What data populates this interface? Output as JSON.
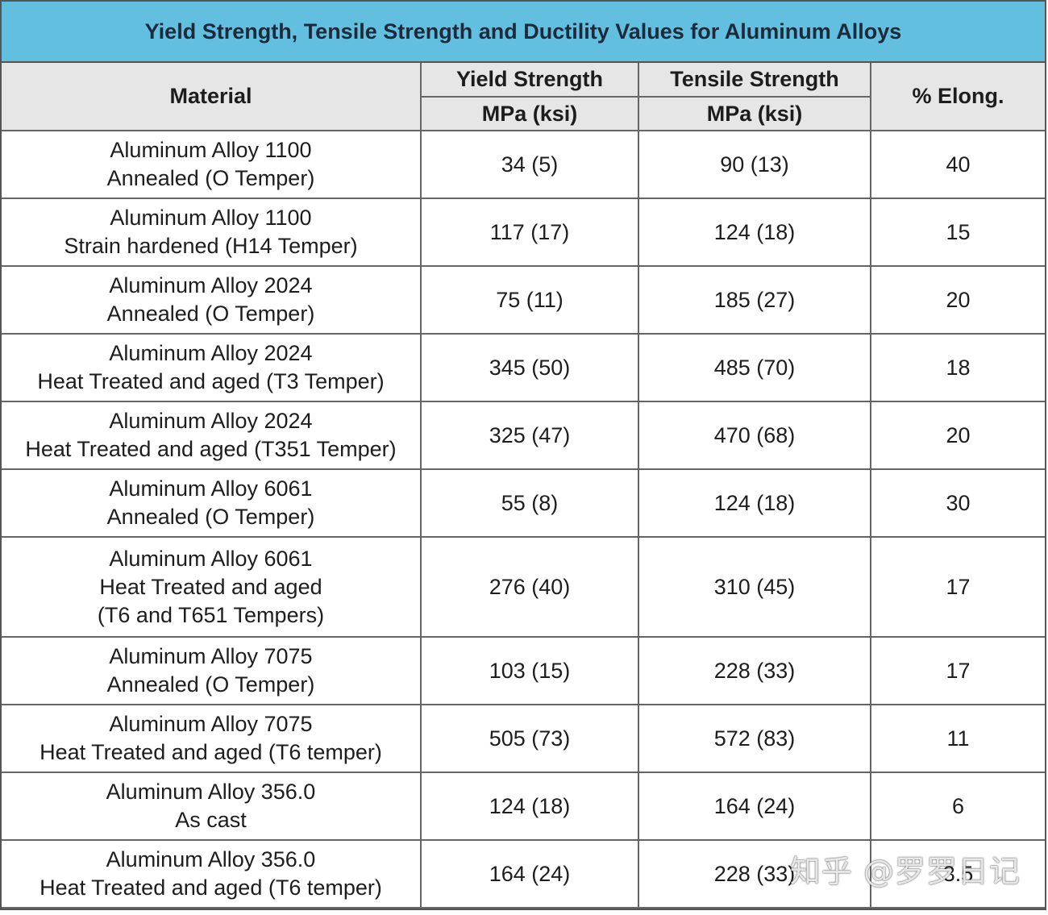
{
  "title": "Yield Strength, Tensile Strength and Ductility Values for Aluminum Alloys",
  "headers": {
    "material": "Material",
    "yield": "Yield Strength",
    "tensile": "Tensile Strength",
    "elong": "% Elong.",
    "yield_unit": "MPa (ksi)",
    "tensile_unit": "MPa (ksi)"
  },
  "rows": [
    {
      "material": [
        "Aluminum Alloy 1100",
        "Annealed (O Temper)"
      ],
      "yield": "34 (5)",
      "tensile": "90 (13)",
      "elong": "40"
    },
    {
      "material": [
        "Aluminum Alloy 1100",
        "Strain hardened (H14 Temper)"
      ],
      "yield": "117 (17)",
      "tensile": "124 (18)",
      "elong": "15"
    },
    {
      "material": [
        "Aluminum Alloy 2024",
        "Annealed (O Temper)"
      ],
      "yield": "75 (11)",
      "tensile": "185 (27)",
      "elong": "20"
    },
    {
      "material": [
        "Aluminum Alloy 2024",
        "Heat Treated and aged (T3 Temper)"
      ],
      "yield": "345 (50)",
      "tensile": "485 (70)",
      "elong": "18"
    },
    {
      "material": [
        "Aluminum Alloy 2024",
        "Heat Treated and aged (T351 Temper)"
      ],
      "yield": "325 (47)",
      "tensile": "470 (68)",
      "elong": "20"
    },
    {
      "material": [
        "Aluminum Alloy 6061",
        "Annealed (O Temper)"
      ],
      "yield": "55 (8)",
      "tensile": "124 (18)",
      "elong": "30"
    },
    {
      "material": [
        "Aluminum Alloy 6061",
        "Heat Treated and aged",
        "(T6 and T651 Tempers)"
      ],
      "yield": "276 (40)",
      "tensile": "310 (45)",
      "elong": "17"
    },
    {
      "material": [
        "Aluminum Alloy 7075",
        "Annealed (O Temper)"
      ],
      "yield": "103 (15)",
      "tensile": "228 (33)",
      "elong": "17"
    },
    {
      "material": [
        "Aluminum Alloy 7075",
        "Heat Treated and aged (T6 temper)"
      ],
      "yield": "505 (73)",
      "tensile": "572 (83)",
      "elong": "11"
    },
    {
      "material": [
        "Aluminum Alloy 356.0",
        "As cast"
      ],
      "yield": "124 (18)",
      "tensile": "164 (24)",
      "elong": "6"
    },
    {
      "material": [
        "Aluminum Alloy 356.0",
        "Heat Treated and aged (T6 temper)"
      ],
      "yield": "164 (24)",
      "tensile": "228 (33)",
      "elong": "3.5"
    }
  ],
  "watermark": "知乎 @罗罗日记"
}
